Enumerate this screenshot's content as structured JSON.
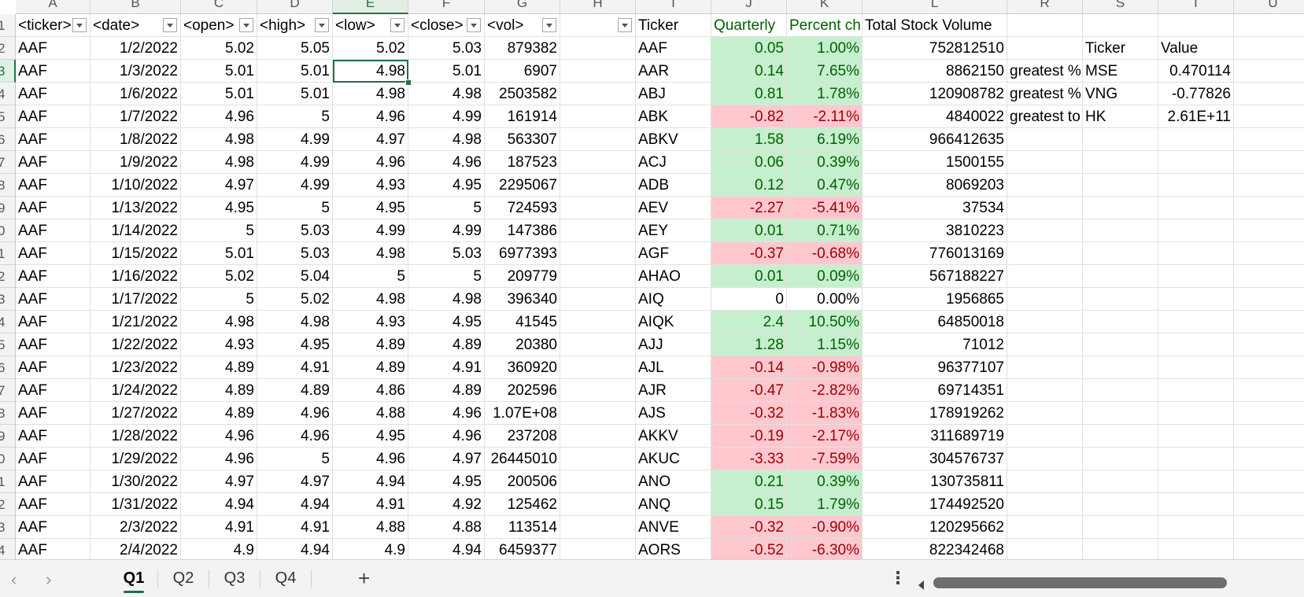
{
  "columns": [
    "A",
    "B",
    "C",
    "D",
    "E",
    "F",
    "G",
    "H",
    "I",
    "J",
    "K",
    "L",
    "R",
    "S",
    "T",
    "U"
  ],
  "rows": [
    "1",
    "2",
    "3",
    "4",
    "5",
    "6",
    "7",
    "8",
    "9",
    "0",
    "1",
    "2",
    "3",
    "4",
    "5",
    "6",
    "7",
    "8",
    "9",
    "0",
    "1",
    "2",
    "3",
    "4"
  ],
  "headers": {
    "A": "<ticker>",
    "B": "<date>",
    "C": "<open>",
    "D": "<high>",
    "E": "<low>",
    "F": "<close>",
    "G": "<vol>",
    "I": "Ticker",
    "J": "Quarterly",
    "K": "Percent ch",
    "L": "Total Stock Volume"
  },
  "data": [
    [
      "AAF",
      "1/2/2022",
      "5.02",
      "5.05",
      "5.02",
      "5.03",
      "879382"
    ],
    [
      "AAF",
      "1/3/2022",
      "5.01",
      "5.01",
      "4.98",
      "5.01",
      "6907"
    ],
    [
      "AAF",
      "1/6/2022",
      "5.01",
      "5.01",
      "4.98",
      "4.98",
      "2503582"
    ],
    [
      "AAF",
      "1/7/2022",
      "4.96",
      "5",
      "4.96",
      "4.99",
      "161914"
    ],
    [
      "AAF",
      "1/8/2022",
      "4.98",
      "4.99",
      "4.97",
      "4.98",
      "563307"
    ],
    [
      "AAF",
      "1/9/2022",
      "4.98",
      "4.99",
      "4.96",
      "4.96",
      "187523"
    ],
    [
      "AAF",
      "1/10/2022",
      "4.97",
      "4.99",
      "4.93",
      "4.95",
      "2295067"
    ],
    [
      "AAF",
      "1/13/2022",
      "4.95",
      "5",
      "4.95",
      "5",
      "724593"
    ],
    [
      "AAF",
      "1/14/2022",
      "5",
      "5.03",
      "4.99",
      "4.99",
      "147386"
    ],
    [
      "AAF",
      "1/15/2022",
      "5.01",
      "5.03",
      "4.98",
      "5.03",
      "6977393"
    ],
    [
      "AAF",
      "1/16/2022",
      "5.02",
      "5.04",
      "5",
      "5",
      "209779"
    ],
    [
      "AAF",
      "1/17/2022",
      "5",
      "5.02",
      "4.98",
      "4.98",
      "396340"
    ],
    [
      "AAF",
      "1/21/2022",
      "4.98",
      "4.98",
      "4.93",
      "4.95",
      "41545"
    ],
    [
      "AAF",
      "1/22/2022",
      "4.93",
      "4.95",
      "4.89",
      "4.89",
      "20380"
    ],
    [
      "AAF",
      "1/23/2022",
      "4.89",
      "4.91",
      "4.89",
      "4.91",
      "360920"
    ],
    [
      "AAF",
      "1/24/2022",
      "4.89",
      "4.89",
      "4.86",
      "4.89",
      "202596"
    ],
    [
      "AAF",
      "1/27/2022",
      "4.89",
      "4.96",
      "4.88",
      "4.96",
      "1.07E+08"
    ],
    [
      "AAF",
      "1/28/2022",
      "4.96",
      "4.96",
      "4.95",
      "4.96",
      "237208"
    ],
    [
      "AAF",
      "1/29/2022",
      "4.96",
      "5",
      "4.96",
      "4.97",
      "26445010"
    ],
    [
      "AAF",
      "1/30/2022",
      "4.97",
      "4.97",
      "4.94",
      "4.95",
      "200506"
    ],
    [
      "AAF",
      "1/31/2022",
      "4.94",
      "4.94",
      "4.91",
      "4.92",
      "125462"
    ],
    [
      "AAF",
      "2/3/2022",
      "4.91",
      "4.91",
      "4.88",
      "4.88",
      "113514"
    ],
    [
      "AAF",
      "2/4/2022",
      "4.9",
      "4.94",
      "4.9",
      "4.94",
      "6459377"
    ]
  ],
  "summary": [
    [
      "AAF",
      "0.05",
      "1.00%",
      "752812510",
      "pos"
    ],
    [
      "AAR",
      "0.14",
      "7.65%",
      "8862150",
      "pos"
    ],
    [
      "ABJ",
      "0.81",
      "1.78%",
      "120908782",
      "pos"
    ],
    [
      "ABK",
      "-0.82",
      "-2.11%",
      "4840022",
      "neg"
    ],
    [
      "ABKV",
      "1.58",
      "6.19%",
      "966412635",
      "pos"
    ],
    [
      "ACJ",
      "0.06",
      "0.39%",
      "1500155",
      "pos"
    ],
    [
      "ADB",
      "0.12",
      "0.47%",
      "8069203",
      "pos"
    ],
    [
      "AEV",
      "-2.27",
      "-5.41%",
      "37534",
      "neg"
    ],
    [
      "AEY",
      "0.01",
      "0.71%",
      "3810223",
      "pos"
    ],
    [
      "AGF",
      "-0.37",
      "-0.68%",
      "776013169",
      "neg"
    ],
    [
      "AHAO",
      "0.01",
      "0.09%",
      "567188227",
      "pos"
    ],
    [
      "AIQ",
      "0",
      "0.00%",
      "1956865",
      "none"
    ],
    [
      "AIQK",
      "2.4",
      "10.50%",
      "64850018",
      "pos"
    ],
    [
      "AJJ",
      "1.28",
      "1.15%",
      "71012",
      "pos"
    ],
    [
      "AJL",
      "-0.14",
      "-0.98%",
      "96377107",
      "neg"
    ],
    [
      "AJR",
      "-0.47",
      "-2.82%",
      "69714351",
      "neg"
    ],
    [
      "AJS",
      "-0.32",
      "-1.83%",
      "178919262",
      "neg"
    ],
    [
      "AKKV",
      "-0.19",
      "-2.17%",
      "311689719",
      "neg"
    ],
    [
      "AKUC",
      "-3.33",
      "-7.59%",
      "304576737",
      "neg"
    ],
    [
      "ANO",
      "0.21",
      "0.39%",
      "130735811",
      "pos"
    ],
    [
      "ANQ",
      "0.15",
      "1.79%",
      "174492520",
      "pos"
    ],
    [
      "ANVE",
      "-0.32",
      "-0.90%",
      "120295662",
      "neg"
    ],
    [
      "AORS",
      "-0.52",
      "-6.30%",
      "822342468",
      "neg"
    ]
  ],
  "greatest": {
    "header_ticker": "Ticker",
    "header_value": "Value",
    "rows": [
      [
        "greatest %",
        "MSE",
        "0.470114"
      ],
      [
        "greatest %",
        "VNG",
        "-0.77826"
      ],
      [
        "greatest to",
        "HK",
        "2.61E+11"
      ]
    ]
  },
  "tabs": [
    "Q1",
    "Q2",
    "Q3",
    "Q4"
  ],
  "active_tab": "Q1",
  "nav": {
    "prev": "‹",
    "next": "›",
    "add": "+",
    "more": "⋮"
  },
  "colors": {
    "positive_fill": "#c6efce",
    "positive_text": "#006100",
    "negative_fill": "#ffc7ce",
    "negative_text": "#9c0006",
    "accent": "#1e7145"
  }
}
